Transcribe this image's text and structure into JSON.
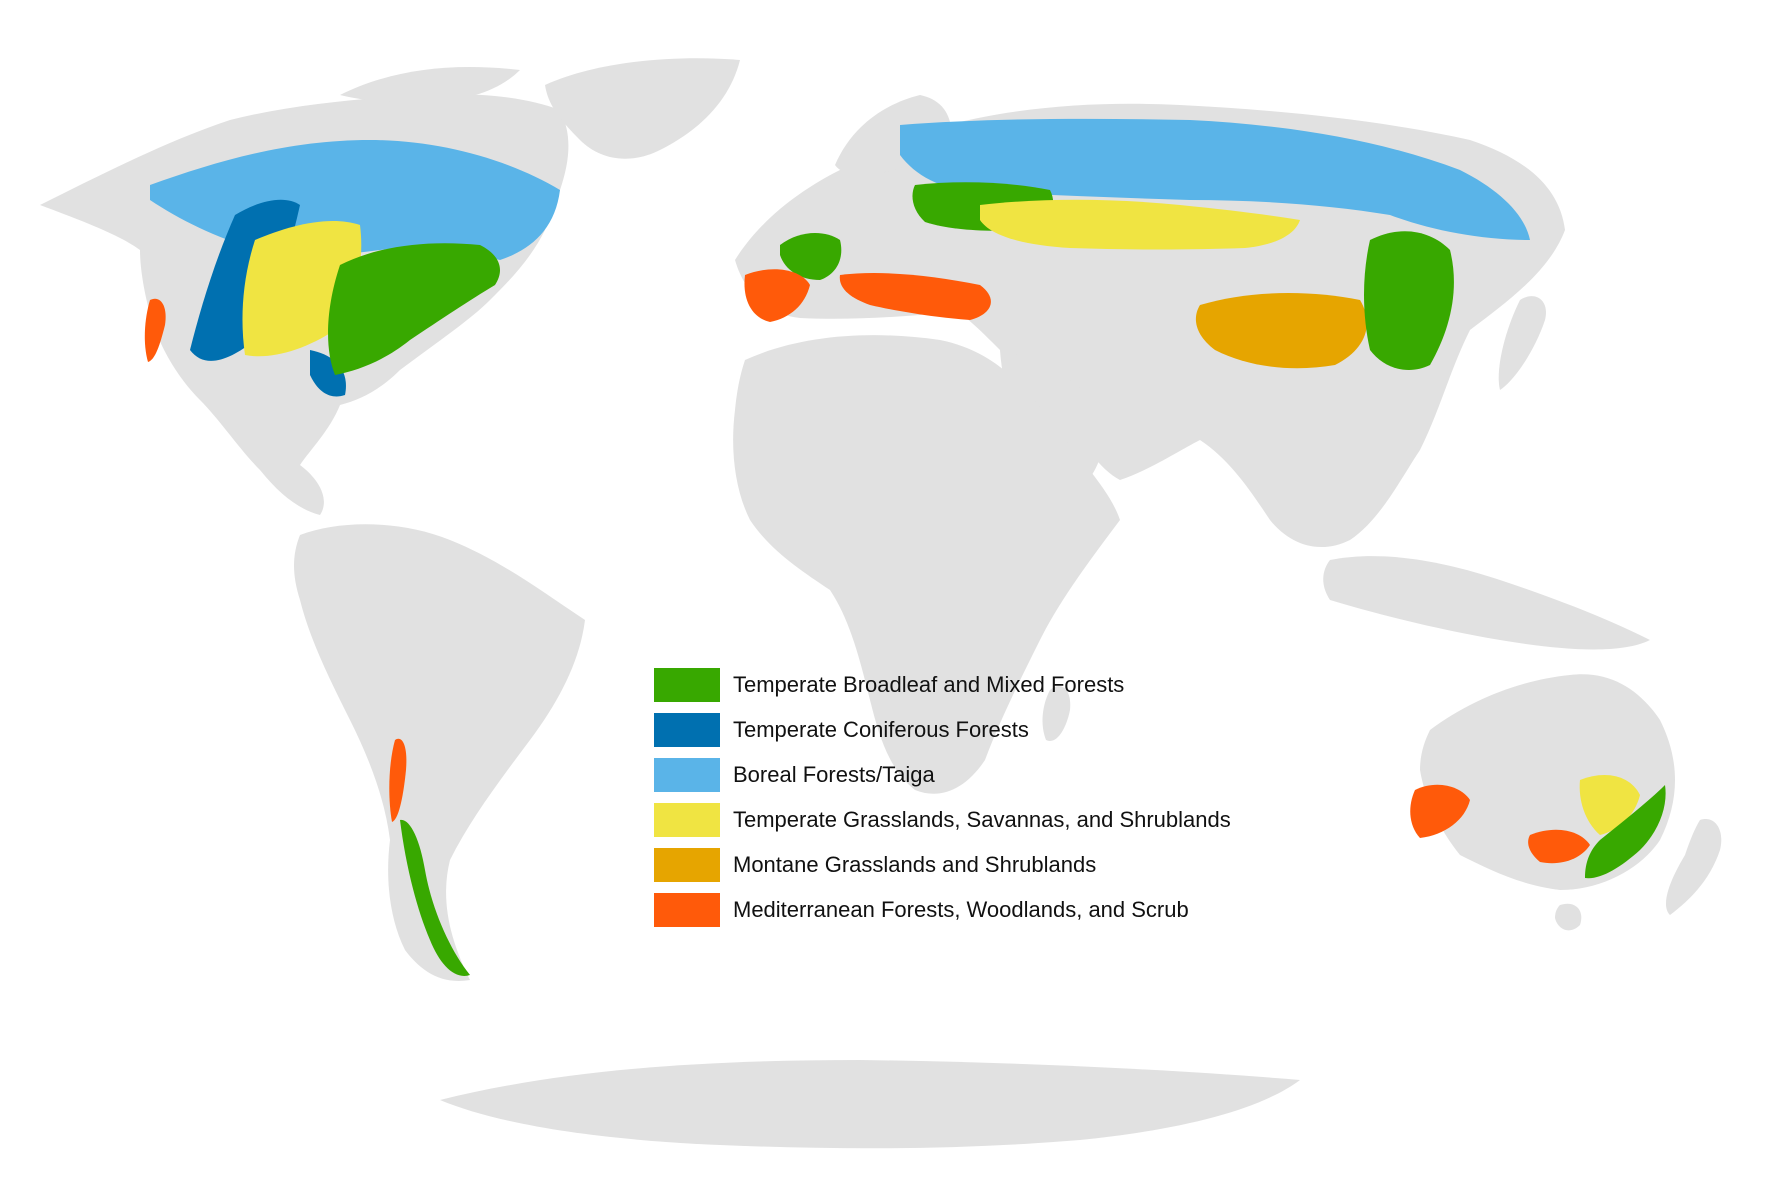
{
  "map": {
    "land_color": "#e1e1e1",
    "background_color": "#ffffff"
  },
  "legend": {
    "items": [
      {
        "label": "Temperate Broadleaf and Mixed Forests",
        "color": "#38a800"
      },
      {
        "label": "Temperate Coniferous Forests",
        "color": "#0070b0"
      },
      {
        "label": "Boreal Forests/Taiga",
        "color": "#5ab4e8"
      },
      {
        "label": "Temperate Grasslands, Savannas, and Shrublands",
        "color": "#f0e442"
      },
      {
        "label": "Montane Grasslands and Shrublands",
        "color": "#e6a500"
      },
      {
        "label": "Mediterranean Forests, Woodlands, and Scrub",
        "color": "#ff5a0a"
      }
    ]
  }
}
